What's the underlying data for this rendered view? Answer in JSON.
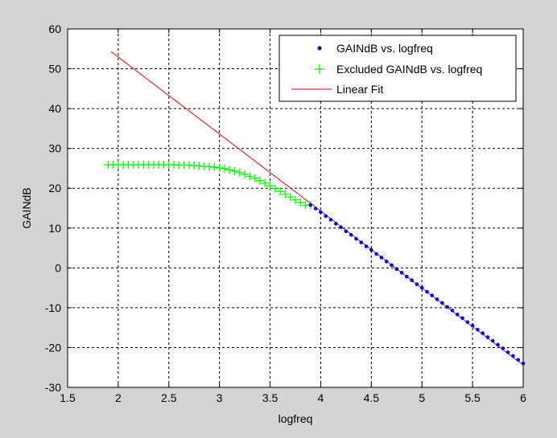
{
  "colors": {
    "figure_bg": "#d4d4d4",
    "axes_bg": "#ffffff",
    "data": "#0000ff",
    "excluded": "#00ff00",
    "fit": "#ff0000",
    "grid": "#000000"
  },
  "chart_data": {
    "type": "scatter",
    "xlabel": "logfreq",
    "ylabel": "GAINdB",
    "xlim": [
      1.5,
      6
    ],
    "ylim": [
      -30,
      60
    ],
    "xticks": [
      1.5,
      2,
      2.5,
      3,
      3.5,
      4,
      4.5,
      5,
      5.5,
      6
    ],
    "yticks": [
      -30,
      -20,
      -10,
      0,
      10,
      20,
      30,
      40,
      50,
      60
    ],
    "xtick_labels": [
      "1.5",
      "2",
      "2.5",
      "3",
      "3.5",
      "4",
      "4.5",
      "5",
      "5.5",
      "6"
    ],
    "ytick_labels": [
      "-30",
      "-20",
      "-10",
      "0",
      "10",
      "20",
      "30",
      "40",
      "50",
      "60"
    ],
    "grid": "on (dashed)",
    "legend_placement": "top-right",
    "series": [
      {
        "name": "GAINdB vs. logfreq",
        "marker": "dot",
        "x": [
          3.9,
          3.95,
          4.0,
          4.05,
          4.1,
          4.15,
          4.2,
          4.25,
          4.3,
          4.35,
          4.4,
          4.45,
          4.5,
          4.55,
          4.6,
          4.65,
          4.7,
          4.75,
          4.8,
          4.85,
          4.9,
          4.95,
          5.0,
          5.05,
          5.1,
          5.15,
          5.2,
          5.25,
          5.3,
          5.35,
          5.4,
          5.45,
          5.5,
          5.55,
          5.6,
          5.65,
          5.7,
          5.75,
          5.8,
          5.85,
          5.9,
          5.95,
          6.0
        ],
        "y": [
          15.8,
          14.9,
          14.0,
          13.0,
          12.1,
          11.1,
          10.2,
          9.2,
          8.3,
          7.3,
          6.4,
          5.4,
          4.5,
          3.5,
          2.6,
          1.6,
          0.7,
          -0.3,
          -1.2,
          -2.2,
          -3.1,
          -4.1,
          -5.0,
          -6.0,
          -6.9,
          -7.9,
          -8.8,
          -9.8,
          -10.7,
          -11.7,
          -12.6,
          -13.6,
          -14.5,
          -15.5,
          -16.4,
          -17.4,
          -18.3,
          -19.3,
          -20.2,
          -21.2,
          -22.1,
          -23.1,
          -24.0
        ]
      },
      {
        "name": "Excluded GAINdB vs. logfreq",
        "marker": "plus",
        "x": [
          1.9,
          1.95,
          2.0,
          2.05,
          2.1,
          2.15,
          2.2,
          2.25,
          2.3,
          2.35,
          2.4,
          2.45,
          2.5,
          2.55,
          2.6,
          2.65,
          2.7,
          2.75,
          2.8,
          2.85,
          2.9,
          2.95,
          3.0,
          3.05,
          3.1,
          3.15,
          3.2,
          3.25,
          3.3,
          3.35,
          3.4,
          3.45,
          3.5,
          3.55,
          3.6,
          3.65,
          3.7,
          3.75,
          3.8,
          3.85,
          3.9
        ],
        "y": [
          25.9,
          25.9,
          25.9,
          25.9,
          25.9,
          25.9,
          25.9,
          25.9,
          25.9,
          25.9,
          25.9,
          25.9,
          25.9,
          25.9,
          25.8,
          25.8,
          25.8,
          25.7,
          25.6,
          25.5,
          25.4,
          25.3,
          25.1,
          24.9,
          24.6,
          24.3,
          23.9,
          23.5,
          23.0,
          22.5,
          21.9,
          21.3,
          20.6,
          19.9,
          19.2,
          18.5,
          17.8,
          17.1,
          16.4,
          15.7,
          15.8
        ]
      },
      {
        "name": "Linear Fit",
        "marker": "line",
        "x": [
          1.93,
          6.0
        ],
        "y": [
          54.3,
          -24.4
        ]
      }
    ]
  }
}
